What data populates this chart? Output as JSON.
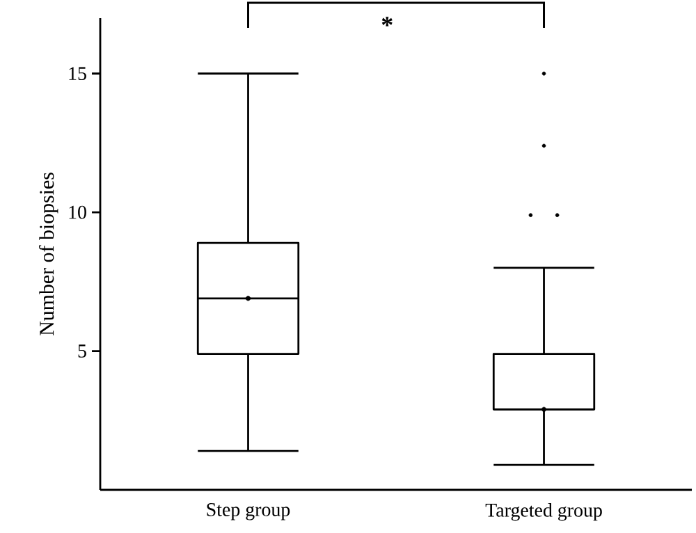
{
  "chart_data": {
    "type": "box",
    "ylabel": "Number of biopsies",
    "categories": [
      "Step group",
      "Targeted group"
    ],
    "color": "#000000",
    "boxes": [
      {
        "low": 1.4,
        "q1": 4.9,
        "median": 6.9,
        "q3": 8.9,
        "high": 15,
        "mean": 6.9
      },
      {
        "low": 0.9,
        "q1": 2.9,
        "median": 2.9,
        "q3": 4.9,
        "high": 8,
        "mean": 2.9,
        "outliers": [
          9.9,
          9.9,
          12.4,
          15
        ]
      }
    ],
    "ylim": [
      0,
      17
    ],
    "yticks": [
      5,
      10,
      15
    ],
    "annotations": [
      "*"
    ]
  }
}
